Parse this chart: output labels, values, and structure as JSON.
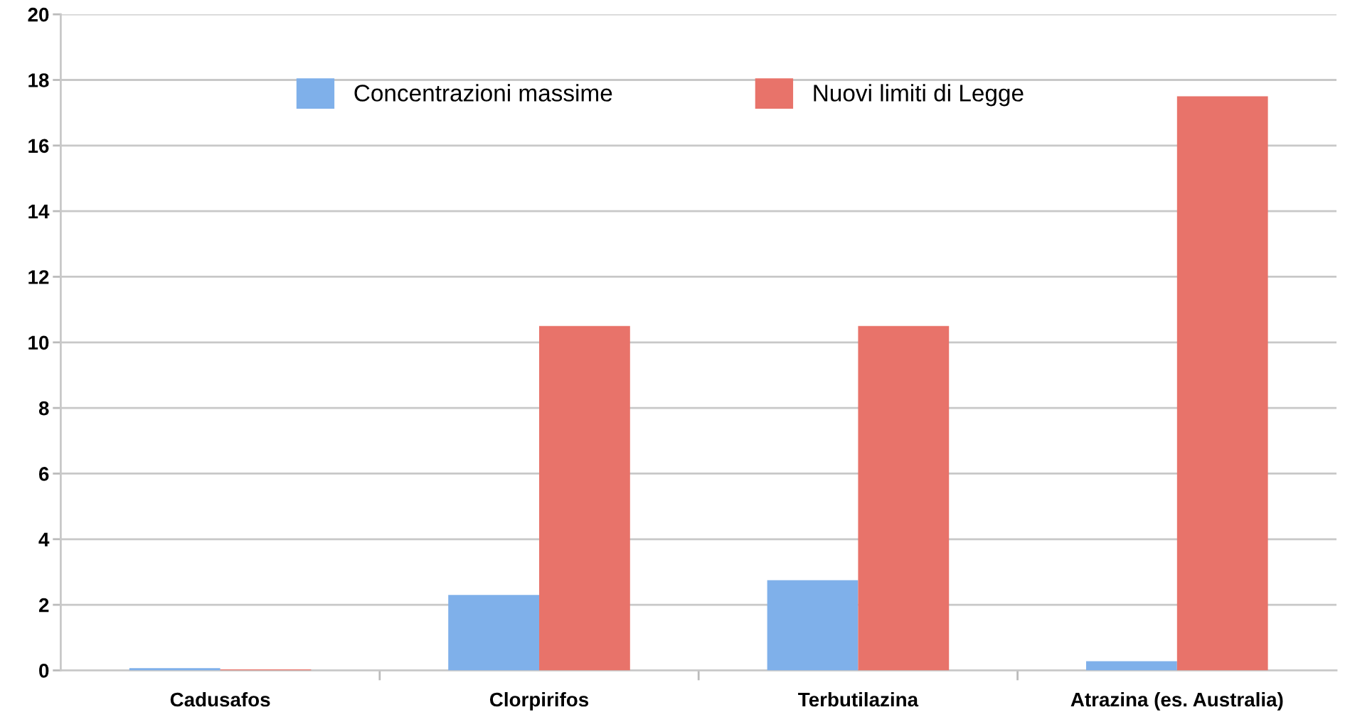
{
  "chart_data": {
    "type": "bar",
    "categories": [
      "Cadusafos",
      "Clorpirifos",
      "Terbutilazina",
      "Atrazina (es. Australia)"
    ],
    "series": [
      {
        "name": "Concentrazioni massime",
        "color": "#7fb0ea",
        "values": [
          0.07,
          2.3,
          2.75,
          0.28
        ]
      },
      {
        "name": "Nuovi limiti di Legge",
        "color": "#e8736a",
        "values": [
          0.03,
          10.5,
          10.5,
          17.5
        ]
      }
    ],
    "ylim": [
      0,
      20
    ],
    "yticks": [
      0,
      2,
      4,
      6,
      8,
      10,
      12,
      14,
      16,
      18,
      20
    ],
    "grid": "y",
    "legend": "top"
  }
}
